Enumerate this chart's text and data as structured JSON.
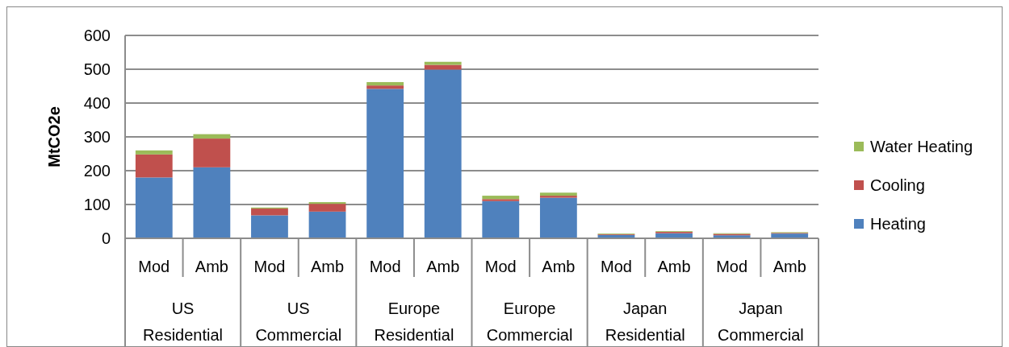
{
  "chart_data": {
    "type": "bar",
    "stacked": true,
    "ylabel": "MtCO2e",
    "categories": [
      "Mod",
      "Amb",
      "Mod",
      "Amb",
      "Mod",
      "Amb",
      "Mod",
      "Amb",
      "Mod",
      "Amb",
      "Mod",
      "Amb"
    ],
    "annotations": [
      "US Residential",
      "US Commercial",
      "Europe Residential",
      "Europe Commercial",
      "Japan Residential",
      "Japan Commercial"
    ],
    "series": [
      {
        "name": "Heating",
        "color": "#4f81bd",
        "values": [
          180,
          210,
          68,
          79,
          442,
          499,
          110,
          120,
          10,
          15,
          9,
          14
        ]
      },
      {
        "name": "Cooling",
        "color": "#c0504d",
        "values": [
          68,
          85,
          20,
          23,
          10,
          14,
          6,
          6,
          2,
          4,
          4,
          2
        ]
      },
      {
        "name": "Water Heating",
        "color": "#9bbb59",
        "values": [
          12,
          13,
          3,
          5,
          10,
          9,
          10,
          9,
          2,
          2,
          2,
          2
        ]
      }
    ],
    "ylim": [
      0,
      600
    ],
    "yticks": [
      0,
      100,
      200,
      300,
      400,
      500,
      600
    ],
    "grid": "y",
    "legend": "right"
  }
}
